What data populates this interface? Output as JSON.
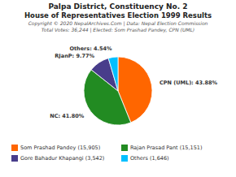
{
  "chart_data": {
    "type": "pie",
    "title": "Palpa District, Constituency No. 2",
    "subtitle": "House of Representatives Election 1999 Results",
    "annotations": [
      "Copyright © 2020 NepalArchives.Com | Data: Nepal Election Commission",
      "Total Votes: 36,244 | Elected: Som Prashad Pandey, CPN (UML)"
    ],
    "categories": [
      "Som Prashad Pandey (15,905)",
      "Rajan Prasad Pant (15,151)",
      "Gore Bahadur Khapangi (3,542)",
      "Others (1,646)"
    ],
    "values": [
      43.88,
      41.8,
      9.77,
      4.54
    ],
    "value_labels": [
      "CPN (UML): 43.88%",
      "NC: 41.80%",
      "RJanP: 9.77%",
      "Others: 4.54%"
    ],
    "colors": [
      "#FF6600",
      "#228B22",
      "#483D8B",
      "#00BFFF"
    ],
    "data_labels": true,
    "legend": "bottom"
  }
}
